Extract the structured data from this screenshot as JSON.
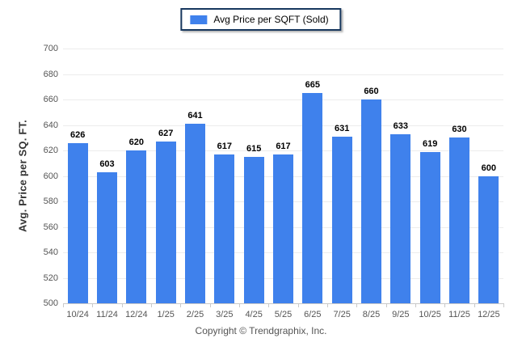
{
  "chart_data": {
    "type": "bar",
    "legend_label": "Avg Price per SQFT (Sold)",
    "ylabel": "Avg. Price per SQ. FT.",
    "categories": [
      "10/24",
      "11/24",
      "12/24",
      "1/25",
      "2/25",
      "3/25",
      "4/25",
      "5/25",
      "6/25",
      "7/25",
      "8/25",
      "9/25",
      "10/25",
      "11/25",
      "12/25"
    ],
    "values": [
      626,
      603,
      620,
      627,
      641,
      617,
      615,
      617,
      665,
      631,
      660,
      633,
      619,
      630,
      600
    ],
    "ylim": [
      500,
      700
    ],
    "ytick_step": 20,
    "grid": "horizontal",
    "legend_position": "top-center",
    "bar_color": "#3f81ec",
    "legend_border_color": "#17375e"
  },
  "footer": {
    "copyright": "Copyright © Trendgraphix, Inc."
  }
}
